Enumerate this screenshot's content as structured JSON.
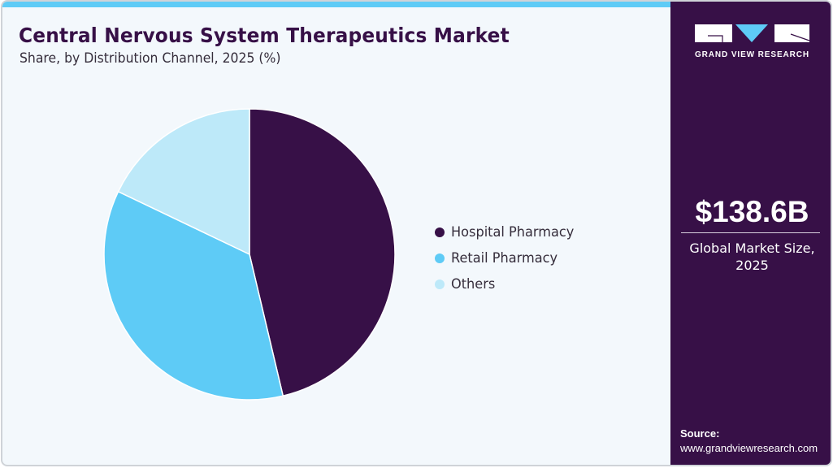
{
  "header": {
    "title": "Central Nervous System Therapeutics Market",
    "subtitle": "Share, by Distribution Channel, 2025 (%)"
  },
  "colors": {
    "brand_purple": "#371047",
    "accent_blue": "#5ecbf6",
    "light_blue": "#bde9f9",
    "background": "#f3f8fc"
  },
  "chart_data": {
    "type": "pie",
    "title": "Central Nervous System Therapeutics Market",
    "subtitle": "Share, by Distribution Channel, 2025 (%)",
    "categories": [
      "Hospital Pharmacy",
      "Retail Pharmacy",
      "Others"
    ],
    "values": [
      46.3,
      35.8,
      17.9
    ],
    "colors": [
      "#371047",
      "#5ecbf6",
      "#bde9f9"
    ],
    "start_angle_deg": 0,
    "direction": "clockwise",
    "legend_position": "right",
    "data_labels": false
  },
  "legend": {
    "items": [
      {
        "label": "Hospital Pharmacy",
        "color": "#371047"
      },
      {
        "label": "Retail Pharmacy",
        "color": "#5ecbf6"
      },
      {
        "label": "Others",
        "color": "#bde9f9"
      }
    ]
  },
  "sidebar": {
    "logo_text": "GRAND VIEW RESEARCH",
    "market_size": "$138.6B",
    "market_label_line1": "Global Market Size,",
    "market_label_line2": "2025",
    "source_label": "Source:",
    "source_url": "www.grandviewresearch.com"
  }
}
